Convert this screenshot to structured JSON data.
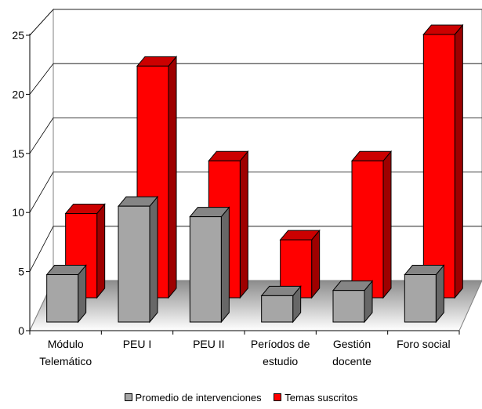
{
  "chart_data": {
    "type": "bar",
    "title": "",
    "xlabel": "",
    "ylabel": "",
    "ylim": [
      0,
      25
    ],
    "yticks": [
      0,
      5,
      10,
      15,
      20,
      25
    ],
    "grid": true,
    "legend_position": "bottom",
    "categories": [
      [
        "Módulo",
        "Telemático"
      ],
      [
        "PEU I"
      ],
      [
        "PEU II"
      ],
      [
        "Períodos de",
        "estudio"
      ],
      [
        "Gestión",
        "docente"
      ],
      [
        "Foro social"
      ]
    ],
    "series": [
      {
        "name": "Promedio de intervenciones",
        "color": "#a6a6a6",
        "values": [
          4.5,
          11,
          10,
          2.5,
          3,
          4.5
        ]
      },
      {
        "name": "Temas suscritos",
        "color": "#ff0000",
        "values": [
          8,
          22,
          13,
          5.5,
          13,
          25
        ]
      }
    ]
  }
}
